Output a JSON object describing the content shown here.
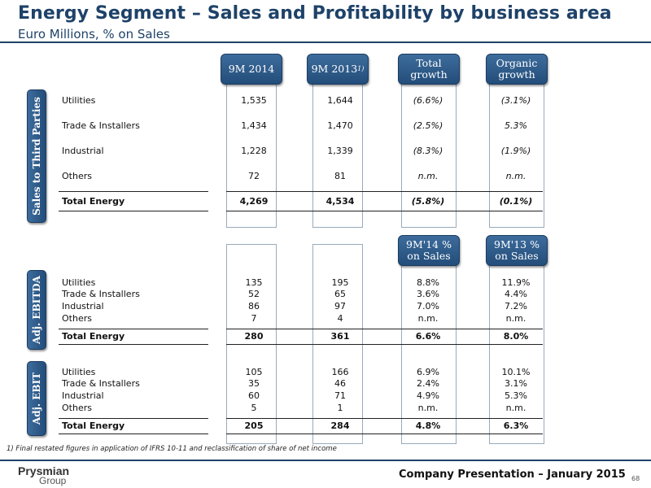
{
  "header": {
    "title": "Energy Segment – Sales and Profitability by business area",
    "subtitle": "Euro Millions, % on Sales"
  },
  "columns": {
    "c1": "9M 2014",
    "c2": "9M 2013",
    "c2_note": "1)",
    "c3": "Total growth",
    "c4": "Organic growth",
    "c3b": "9M'14 % on Sales",
    "c4b": "9M'13 % on Sales"
  },
  "sections": {
    "sales": {
      "tab": "Sales to Third Parties",
      "rows": [
        {
          "label": "Utilities",
          "v1": "1,535",
          "v2": "1,644",
          "v3": "(6.6%)",
          "v4": "(3.1%)"
        },
        {
          "label": "Trade & Installers",
          "v1": "1,434",
          "v2": "1,470",
          "v3": "(2.5%)",
          "v4": "5.3%"
        },
        {
          "label": "Industrial",
          "v1": "1,228",
          "v2": "1,339",
          "v3": "(8.3%)",
          "v4": "(1.9%)"
        },
        {
          "label": "Others",
          "v1": "72",
          "v2": "81",
          "v3": "n.m.",
          "v4": "n.m."
        }
      ],
      "total": {
        "label": "Total Energy",
        "v1": "4,269",
        "v2": "4,534",
        "v3": "(5.8%)",
        "v4": "(0.1%)"
      }
    },
    "ebitda": {
      "tab": "Adj. EBITDA",
      "rows": [
        {
          "label": "Utilities",
          "v1": "135",
          "v2": "195",
          "v3": "8.8%",
          "v4": "11.9%"
        },
        {
          "label": "Trade & Installers",
          "v1": "52",
          "v2": "65",
          "v3": "3.6%",
          "v4": "4.4%"
        },
        {
          "label": "Industrial",
          "v1": "86",
          "v2": "97",
          "v3": "7.0%",
          "v4": "7.2%"
        },
        {
          "label": "Others",
          "v1": "7",
          "v2": "4",
          "v3": "n.m.",
          "v4": "n.m."
        }
      ],
      "total": {
        "label": "Total Energy",
        "v1": "280",
        "v2": "361",
        "v3": "6.6%",
        "v4": "8.0%"
      }
    },
    "ebit": {
      "tab": "Adj. EBIT",
      "rows": [
        {
          "label": "Utilities",
          "v1": "105",
          "v2": "166",
          "v3": "6.9%",
          "v4": "10.1%"
        },
        {
          "label": "Trade & Installers",
          "v1": "35",
          "v2": "46",
          "v3": "2.4%",
          "v4": "3.1%"
        },
        {
          "label": "Industrial",
          "v1": "60",
          "v2": "71",
          "v3": "4.9%",
          "v4": "5.3%"
        },
        {
          "label": "Others",
          "v1": "5",
          "v2": "1",
          "v3": "n.m.",
          "v4": "n.m."
        }
      ],
      "total": {
        "label": "Total Energy",
        "v1": "205",
        "v2": "284",
        "v3": "4.8%",
        "v4": "6.3%"
      }
    }
  },
  "footnote": "1) Final restated figures in application of IFRS 10-11 and reclassification of share of net income",
  "footer": {
    "logo_line1": "Prysmian",
    "logo_line2": "Group",
    "text": "Company Presentation – January 2015",
    "page": "68"
  },
  "colors": {
    "brand": "#1e4268",
    "header_fill": "#2f5f8f"
  }
}
